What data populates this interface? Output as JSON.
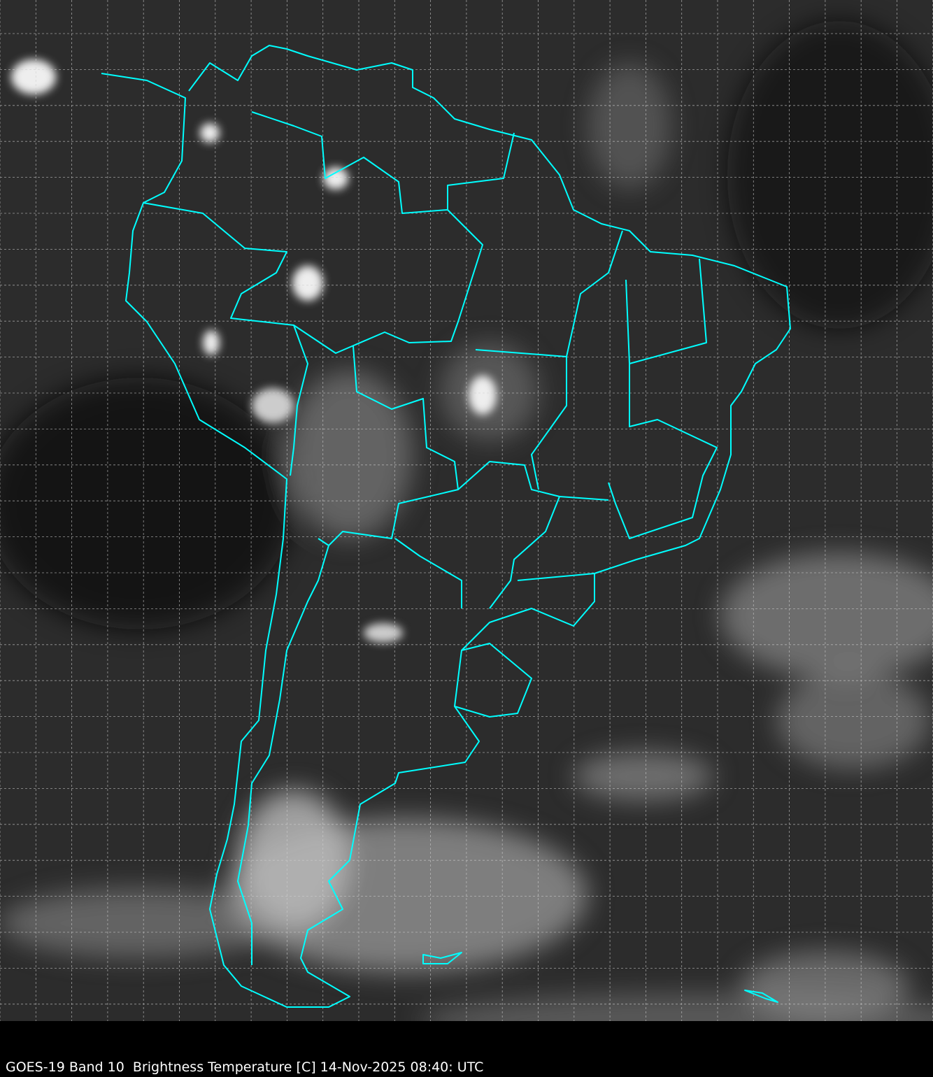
{
  "caption": "GOES-19 Band 10  Brightness Temperature [C] 14-Nov-2025 08:40: UTC",
  "colors": {
    "background": "#2a2a2a",
    "coastline": "#00ffff",
    "grid": "#cfcfcf",
    "caption_bg": "#000000",
    "caption_text": "#ffffff"
  },
  "map": {
    "product": "satellite infrared brightness temperature, grayscale",
    "overlay": "coastlines and political borders",
    "grid": true
  }
}
